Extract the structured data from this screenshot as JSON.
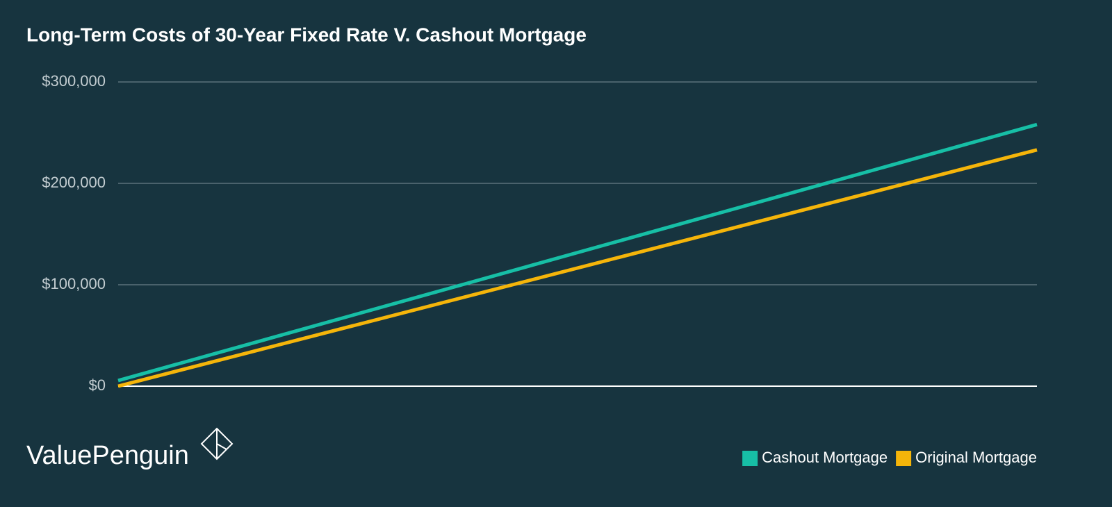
{
  "chart_data": {
    "type": "line",
    "title": "Long-Term Costs of 30-Year Fixed Rate V. Cashout Mortgage",
    "brand": "ValuePenguin",
    "categories": [
      null,
      null
    ],
    "series": [
      {
        "name": "Cashout Mortgage",
        "color": "#17bfa6",
        "values": [
          5500,
          258000
        ]
      },
      {
        "name": "Original Mortgage",
        "color": "#f5b50a",
        "values": [
          0,
          233000
        ]
      }
    ],
    "ylim": [
      0,
      300000
    ],
    "yticks": [
      {
        "value": 0,
        "label": "$0"
      },
      {
        "value": 100000,
        "label": "$100,000"
      },
      {
        "value": 200000,
        "label": "$200,000"
      },
      {
        "value": 300000,
        "label": "$300,000"
      }
    ],
    "grid": true,
    "legend": "bottom-right"
  }
}
